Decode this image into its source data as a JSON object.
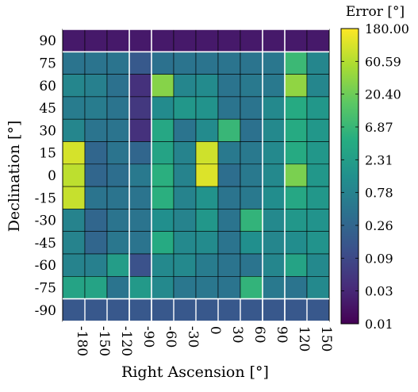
{
  "chart_data": {
    "type": "heatmap",
    "title": "",
    "xlabel": "Right Ascension [°]",
    "ylabel": "Declination [°]",
    "x": [
      "-180",
      "-150",
      "-120",
      "-90",
      "-60",
      "-30",
      "0",
      "30",
      "60",
      "90",
      "120",
      "150"
    ],
    "y": [
      "90",
      "75",
      "60",
      "45",
      "30",
      "15",
      "0",
      "-15",
      "-30",
      "-45",
      "-60",
      "-75",
      "-90"
    ],
    "values": [
      [
        0.02,
        0.02,
        0.02,
        0.02,
        0.02,
        0.02,
        0.02,
        0.02,
        0.02,
        0.02,
        0.02,
        0.02
      ],
      [
        0.45,
        0.45,
        0.45,
        0.16,
        0.4,
        0.45,
        0.45,
        0.45,
        0.45,
        0.5,
        7.5,
        0.9
      ],
      [
        0.9,
        0.7,
        0.4,
        0.04,
        30,
        0.9,
        1.1,
        0.45,
        0.55,
        0.55,
        35,
        0.9
      ],
      [
        0.6,
        0.6,
        0.45,
        0.05,
        1.1,
        1.8,
        1.5,
        0.45,
        0.45,
        1.0,
        4,
        1.8
      ],
      [
        0.9,
        0.45,
        0.45,
        0.04,
        3.5,
        0.45,
        1.1,
        7,
        0.4,
        1.0,
        4,
        1.8
      ],
      [
        100,
        0.26,
        0.45,
        0.26,
        3,
        0.8,
        90,
        0.55,
        0.55,
        1.0,
        4,
        1.8
      ],
      [
        70,
        0.26,
        0.35,
        0.55,
        5,
        0.8,
        110,
        0.35,
        0.55,
        1.0,
        25,
        1.8
      ],
      [
        80,
        0.45,
        0.45,
        0.45,
        5,
        0.8,
        1.5,
        0.45,
        0.55,
        1.2,
        3.5,
        1.8
      ],
      [
        0.8,
        0.26,
        0.45,
        0.45,
        1.3,
        0.8,
        1.8,
        0.45,
        6,
        1.0,
        1.8,
        1.5
      ],
      [
        0.8,
        0.26,
        0.5,
        0.45,
        4,
        1.0,
        1.1,
        0.45,
        1.3,
        0.9,
        1.2,
        1.5
      ],
      [
        0.8,
        0.7,
        2.3,
        0.12,
        1.0,
        1.0,
        0.6,
        0.45,
        0.45,
        0.9,
        3,
        1.0
      ],
      [
        3,
        3,
        0.45,
        2,
        1.0,
        0.5,
        0.5,
        0.45,
        6,
        0.55,
        0.45,
        1.0
      ],
      [
        0.15,
        0.15,
        0.15,
        0.15,
        0.15,
        0.15,
        0.15,
        0.15,
        0.15,
        0.15,
        0.15,
        0.15
      ]
    ],
    "colorbar": {
      "label": "Error [°]",
      "scale": "log",
      "range": [
        0.01,
        180
      ],
      "ticks": [
        "180.00",
        "60.59",
        "20.40",
        "6.87",
        "2.31",
        "0.78",
        "0.26",
        "0.09",
        "0.03",
        "0.01"
      ]
    },
    "highlight_columns": [
      "-90",
      "90"
    ],
    "highlight_rows": [
      "90",
      "-90"
    ],
    "colormap": "viridis"
  }
}
